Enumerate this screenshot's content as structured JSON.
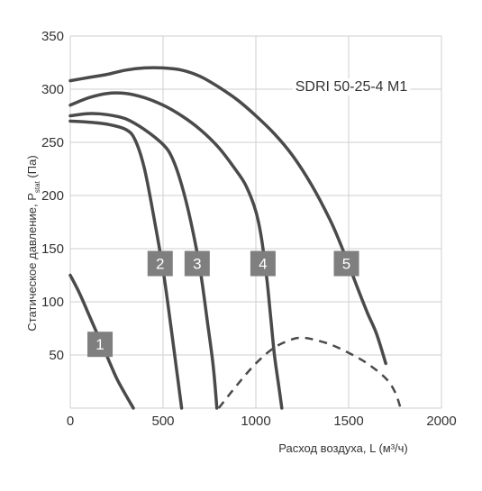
{
  "chart_data": {
    "type": "line",
    "title": "SDRI 50-25-4 M1",
    "xlabel": "Расход воздуха, L (м³/ч)",
    "ylabel": "Статическое давление, P",
    "ylabel_sub": "stat",
    "ylabel_suffix": " (Па)",
    "xlim": [
      0,
      2000
    ],
    "ylim": [
      0,
      350
    ],
    "x_ticks": [
      "0",
      "500",
      "1000",
      "1500",
      "2000"
    ],
    "y_ticks": [
      "350",
      "300",
      "250",
      "200",
      "150",
      "100",
      "50"
    ],
    "grid": true,
    "line_color": "#4a4a4a",
    "label_box_color": "#7f7f7f",
    "series": [
      {
        "label": "1",
        "points": [
          [
            0,
            125
          ],
          [
            50,
            108
          ],
          [
            100,
            88
          ],
          [
            150,
            68
          ],
          [
            200,
            48
          ],
          [
            250,
            28
          ],
          [
            300,
            12
          ],
          [
            340,
            0
          ]
        ]
      },
      {
        "label": "2",
        "points": [
          [
            0,
            270
          ],
          [
            100,
            269
          ],
          [
            200,
            267
          ],
          [
            300,
            262
          ],
          [
            350,
            252
          ],
          [
            400,
            225
          ],
          [
            450,
            180
          ],
          [
            500,
            130
          ],
          [
            540,
            80
          ],
          [
            570,
            40
          ],
          [
            600,
            0
          ]
        ]
      },
      {
        "label": "3",
        "points": [
          [
            0,
            275
          ],
          [
            100,
            277
          ],
          [
            200,
            276
          ],
          [
            300,
            272
          ],
          [
            400,
            262
          ],
          [
            500,
            248
          ],
          [
            550,
            235
          ],
          [
            600,
            210
          ],
          [
            650,
            175
          ],
          [
            700,
            130
          ],
          [
            740,
            80
          ],
          [
            770,
            40
          ],
          [
            790,
            0
          ]
        ]
      },
      {
        "label": "4",
        "points": [
          [
            0,
            285
          ],
          [
            100,
            292
          ],
          [
            200,
            296
          ],
          [
            300,
            296
          ],
          [
            400,
            292
          ],
          [
            500,
            285
          ],
          [
            600,
            275
          ],
          [
            700,
            262
          ],
          [
            800,
            245
          ],
          [
            900,
            222
          ],
          [
            950,
            208
          ],
          [
            1000,
            185
          ],
          [
            1030,
            160
          ],
          [
            1060,
            120
          ],
          [
            1080,
            85
          ],
          [
            1100,
            50
          ],
          [
            1120,
            25
          ],
          [
            1140,
            0
          ]
        ]
      },
      {
        "label": "5",
        "points": [
          [
            0,
            308
          ],
          [
            100,
            311
          ],
          [
            200,
            314
          ],
          [
            300,
            318
          ],
          [
            400,
            320
          ],
          [
            500,
            320
          ],
          [
            600,
            318
          ],
          [
            700,
            312
          ],
          [
            800,
            302
          ],
          [
            900,
            290
          ],
          [
            1000,
            275
          ],
          [
            1100,
            258
          ],
          [
            1200,
            237
          ],
          [
            1300,
            210
          ],
          [
            1400,
            177
          ],
          [
            1450,
            157
          ],
          [
            1500,
            135
          ],
          [
            1550,
            112
          ],
          [
            1600,
            90
          ],
          [
            1650,
            70
          ],
          [
            1700,
            42
          ]
        ]
      }
    ],
    "efficiency_curve": {
      "style": "dashed",
      "points": [
        [
          800,
          0
        ],
        [
          900,
          22
        ],
        [
          1000,
          42
        ],
        [
          1100,
          57
        ],
        [
          1200,
          65
        ],
        [
          1250,
          66
        ],
        [
          1300,
          65
        ],
        [
          1400,
          60
        ],
        [
          1500,
          52
        ],
        [
          1600,
          42
        ],
        [
          1700,
          28
        ],
        [
          1750,
          15
        ],
        [
          1780,
          0
        ]
      ]
    }
  }
}
